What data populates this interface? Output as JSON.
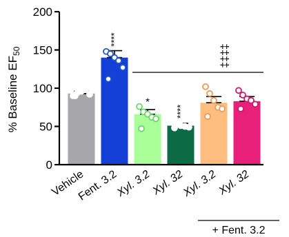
{
  "chart_data": {
    "type": "bar",
    "ylabel_main": "% Baseline EF",
    "ylabel_sub": "50",
    "ylim": [
      0,
      200
    ],
    "yticks": [
      0,
      50,
      100,
      150,
      200
    ],
    "categories": [
      "Vehicle",
      "Fent. 3.2",
      "Xyl. 3.2",
      "Xyl. 32",
      "Xyl. 3.2",
      "Xyl. 32"
    ],
    "italic_categories": [
      false,
      false,
      true,
      true,
      true,
      true
    ],
    "values": [
      93,
      140,
      66,
      51,
      81,
      83
    ],
    "errors": [
      3,
      9,
      6,
      3,
      8,
      6
    ],
    "colors": [
      "#a6a6ab",
      "#1540d8",
      "#aaff99",
      "#0c6b45",
      "#ffbe80",
      "#e8207a"
    ],
    "point_colors": [
      "#ffffff",
      "#2255cc",
      "#6fd66f",
      "#ffffff",
      "#f09a5a",
      "#cc1e6b"
    ],
    "points": [
      [
        90,
        94,
        96,
        98,
        92,
        90
      ],
      [
        148,
        145,
        140,
        136,
        127,
        112
      ],
      [
        76,
        69,
        66,
        62,
        60,
        47
      ],
      [
        55,
        53,
        51,
        50,
        49,
        48
      ],
      [
        102,
        93,
        84,
        75,
        73,
        63
      ],
      [
        97,
        91,
        86,
        84,
        79,
        73
      ]
    ],
    "star_labels": [
      "",
      "****",
      "*",
      "****",
      "",
      ""
    ],
    "dagger_label": "‡‡‡‡",
    "group_label": "+ Fent. 3.2"
  }
}
